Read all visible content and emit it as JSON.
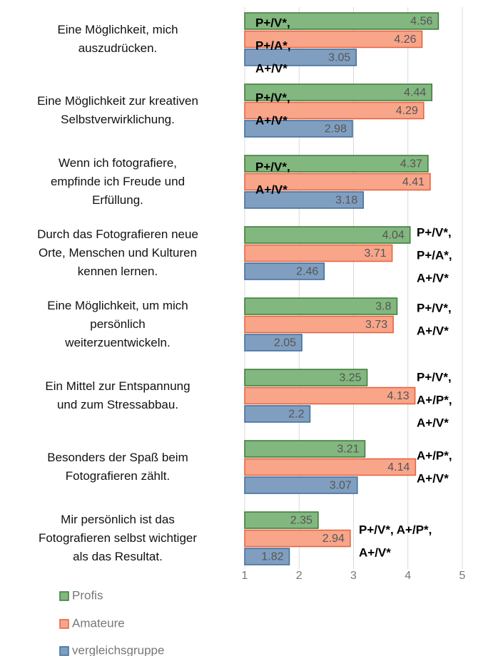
{
  "chart_data": {
    "type": "bar",
    "orientation": "horizontal",
    "categories": [
      "Eine Möglichkeit, mich\nauszudrücken.",
      "Eine Möglichkeit zur kreativen\nSelbstverwirklichung.",
      "Wenn ich fotografiere,\nempfinde ich Freude und\nErfüllung.",
      "Durch das Fotografieren neue\nOrte, Menschen und Kulturen\nkennen lernen.",
      "Eine Möglichkeit, um mich\npersönlich\nweiterzuentwickeln.",
      "Ein Mittel zur Entspannung\nund zum Stressabbau.",
      "Besonders der Spaß beim\nFotografieren zählt.",
      "Mir persönlich ist das\nFotografieren selbst wichtiger\nals das Resultat."
    ],
    "series": [
      {
        "name": "Profis",
        "color": "#82b77f",
        "values": [
          4.56,
          4.44,
          4.37,
          4.04,
          3.8,
          3.25,
          3.21,
          2.35
        ]
      },
      {
        "name": "Amateure",
        "color": "#f8a58a",
        "values": [
          4.26,
          4.29,
          4.41,
          3.71,
          3.73,
          4.13,
          4.14,
          2.94
        ]
      },
      {
        "name": "vergleichsgruppe",
        "color": "#809fc0",
        "values": [
          3.05,
          2.98,
          3.18,
          2.46,
          2.05,
          2.2,
          3.07,
          1.82
        ]
      }
    ],
    "annotations": [
      [
        "P+/V*,",
        "P+/A*,",
        "A+/V*"
      ],
      [
        "P+/V*,",
        "A+/V*"
      ],
      [
        "P+/V*,",
        "A+/V*"
      ],
      [
        "P+/V*,",
        "P+/A*,",
        "A+/V*"
      ],
      [
        "P+/V*,",
        "A+/V*"
      ],
      [
        "P+/V*,",
        "A+/P*,",
        "A+/V*"
      ],
      [
        "A+/P*,",
        "A+/V*"
      ],
      [
        "P+/V*, A+/P*,",
        "A+/V*"
      ]
    ],
    "xlim": [
      1,
      5
    ],
    "xticks": [
      1,
      2,
      3,
      4,
      5
    ],
    "grid": true
  }
}
